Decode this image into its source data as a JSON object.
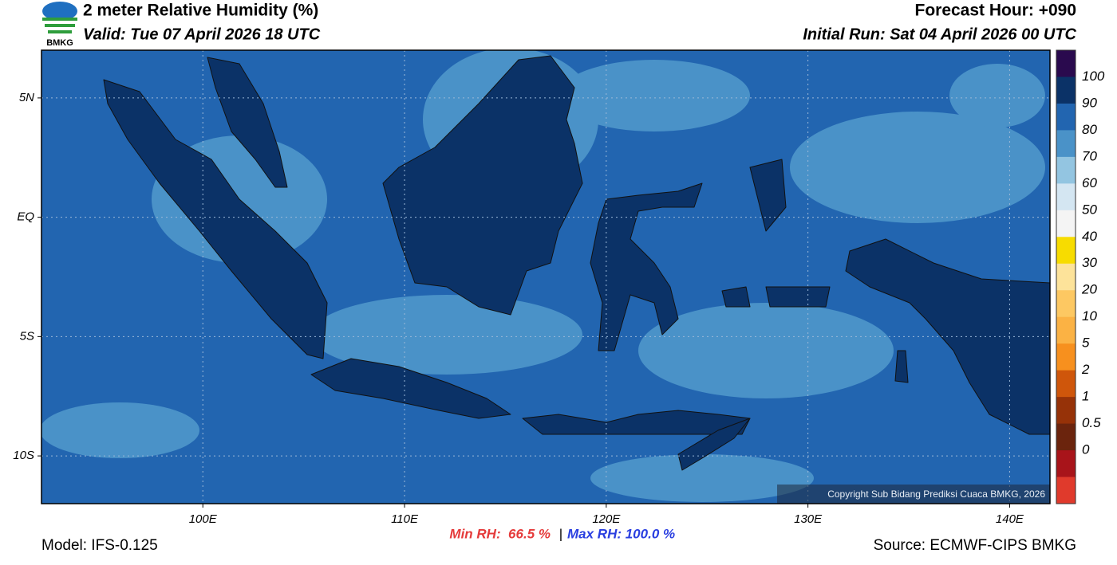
{
  "header": {
    "logo_text": "BMKG",
    "title": "2 meter Relative Humidity (%)",
    "valid": "Valid: Tue 07 April 2026 18 UTC",
    "forecast_hour": "Forecast Hour: +090",
    "initial_run": "Initial Run: Sat 04 April 2026 00 UTC"
  },
  "map": {
    "xlim": [
      92,
      142
    ],
    "ylim": [
      -12,
      7
    ],
    "lon_ticks": [
      {
        "value": 100,
        "label": "100E"
      },
      {
        "value": 110,
        "label": "110E"
      },
      {
        "value": 120,
        "label": "120E"
      },
      {
        "value": 130,
        "label": "130E"
      },
      {
        "value": 140,
        "label": "140E"
      }
    ],
    "lat_ticks": [
      {
        "value": 5,
        "label": "5N"
      },
      {
        "value": 0,
        "label": "EQ"
      },
      {
        "value": -5,
        "label": "5S"
      },
      {
        "value": -10,
        "label": "10S"
      }
    ],
    "copyright": "Copyright Sub Bidang Prediksi Cuaca BMKG, 2026"
  },
  "colorbar": {
    "colors": [
      "#2a0a4e",
      "#0b3267",
      "#2265b0",
      "#4a92c8",
      "#93c5e1",
      "#d4e6f2",
      "#f4f4f4",
      "#f7dc00",
      "#fde39a",
      "#fdc862",
      "#fbb244",
      "#f7901e",
      "#cf560b",
      "#963208",
      "#6b240d",
      "#a8141a",
      "#e03a2c"
    ],
    "ticks": [
      100,
      90,
      80,
      70,
      60,
      50,
      40,
      30,
      20,
      10,
      5,
      2,
      1,
      0.5,
      0
    ]
  },
  "footer": {
    "model": "Model: IFS-0.125",
    "min_rh": "Min RH:  66.5 %",
    "separator": "|",
    "max_rh": "Max RH: 100.0 %",
    "source": "Source: ECMWF-CIPS BMKG"
  }
}
